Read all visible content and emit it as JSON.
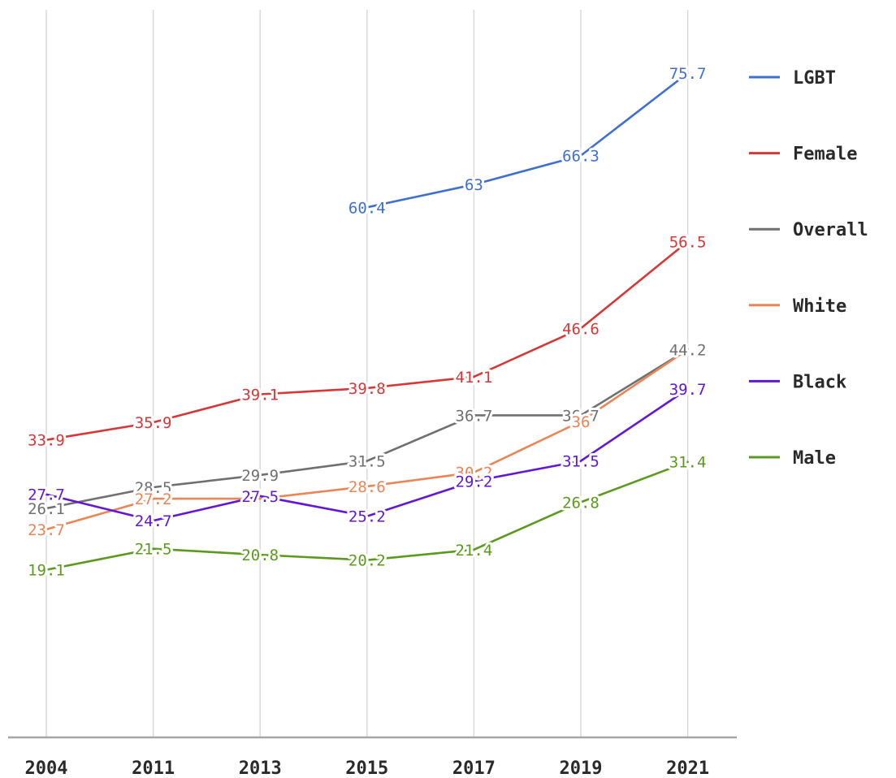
{
  "chart_data": {
    "type": "line",
    "title": "",
    "xlabel": "",
    "ylabel": "",
    "ylim": [
      0,
      80
    ],
    "grid": "vertical",
    "legend_position": "right",
    "categories": [
      "2004",
      "2011",
      "2013",
      "2015",
      "2017",
      "2019",
      "2021"
    ],
    "series": [
      {
        "name": "LGBT",
        "color": "#3f6fd1",
        "values": [
          null,
          null,
          null,
          60.4,
          63,
          66.3,
          75.7
        ],
        "labels": [
          "",
          "",
          "",
          "60.4",
          "63",
          "66.3",
          "75.7"
        ]
      },
      {
        "name": "Female",
        "color": "#d63838",
        "values": [
          33.9,
          35.9,
          39.1,
          39.8,
          41.1,
          46.6,
          56.5
        ],
        "labels": [
          "33.9",
          "35.9",
          "39.1",
          "39.8",
          "41.1",
          "46.6",
          "56.5"
        ]
      },
      {
        "name": "Overall",
        "color": "#707070",
        "values": [
          26.1,
          28.5,
          29.9,
          31.5,
          36.7,
          36.7,
          44.2
        ],
        "labels": [
          "26.1",
          "28.5",
          "29.9",
          "31.5",
          "36.7",
          "36.7",
          "44.2"
        ]
      },
      {
        "name": "White",
        "color": "#ea8556",
        "values": [
          23.7,
          27.2,
          27.2,
          28.6,
          30.2,
          36,
          44.2
        ],
        "labels": [
          "23.7",
          "27.2",
          "",
          "28.6",
          "30.2",
          "36",
          ""
        ]
      },
      {
        "name": "Black",
        "color": "#6317d6",
        "values": [
          27.7,
          24.7,
          27.5,
          25.2,
          29.2,
          31.5,
          39.7
        ],
        "labels": [
          "27.7",
          "24.7",
          "27.5",
          "25.2",
          "29.2",
          "31.5",
          "39.7"
        ]
      },
      {
        "name": "Male",
        "color": "#5b9a1e",
        "values": [
          19.1,
          21.5,
          20.8,
          20.2,
          21.4,
          26.8,
          31.4
        ],
        "labels": [
          "19.1",
          "21.5",
          "20.8",
          "20.2",
          "21.4",
          "26.8",
          "31.4"
        ]
      }
    ]
  }
}
